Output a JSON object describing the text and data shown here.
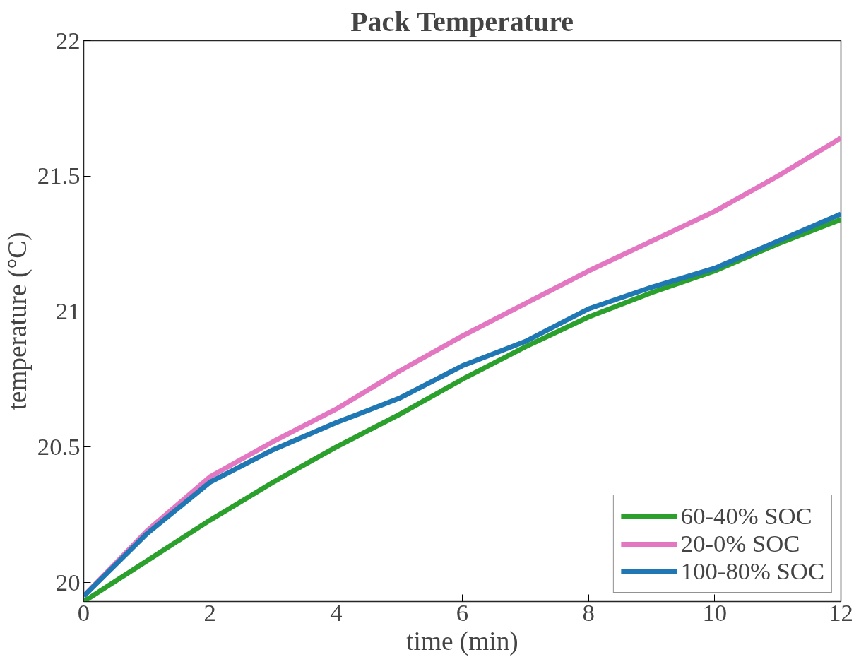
{
  "chart_data": {
    "type": "line",
    "title": "Pack Temperature",
    "xlabel": "time (min)",
    "ylabel": "temperature (°C)",
    "x": [
      0,
      1,
      2,
      3,
      4,
      5,
      6,
      7,
      8,
      9,
      10,
      11,
      12
    ],
    "series": [
      {
        "name": "60-40% SOC",
        "color": "#2ca02c",
        "values": [
          19.93,
          20.08,
          20.23,
          20.37,
          20.5,
          20.62,
          20.75,
          20.87,
          20.98,
          21.07,
          21.15,
          21.25,
          21.34
        ]
      },
      {
        "name": "20-0% SOC",
        "color": "#e377c2",
        "values": [
          19.95,
          20.19,
          20.39,
          20.52,
          20.64,
          20.78,
          20.91,
          21.03,
          21.15,
          21.26,
          21.37,
          21.5,
          21.64
        ]
      },
      {
        "name": "100-80% SOC",
        "color": "#1f77b4",
        "values": [
          19.95,
          20.18,
          20.37,
          20.49,
          20.59,
          20.68,
          20.8,
          20.89,
          21.01,
          21.09,
          21.16,
          21.26,
          21.36
        ]
      }
    ],
    "xlim": [
      0,
      12
    ],
    "xticks": [
      0,
      2,
      4,
      6,
      8,
      10,
      12
    ],
    "ylim": [
      19.93,
      22
    ],
    "yticks": [
      20,
      20.5,
      21,
      21.5,
      22
    ],
    "grid": false,
    "legend": "bottom right",
    "line_style": "solid",
    "marker": "none"
  }
}
